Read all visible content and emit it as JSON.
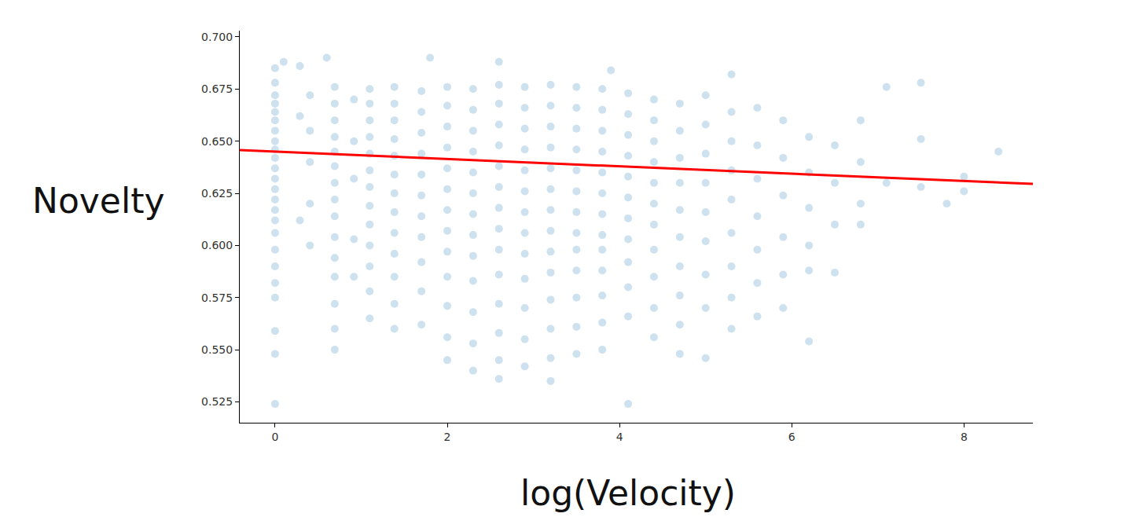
{
  "chart_data": {
    "type": "scatter",
    "xlabel": "log(Velocity)",
    "ylabel": "Novelty",
    "xlim": [
      -0.41,
      8.8
    ],
    "xticks": [
      0,
      2,
      4,
      6,
      8
    ],
    "ylim": [
      0.515,
      0.703
    ],
    "yticks": [
      {
        "value": 0.525,
        "label": "0.525"
      },
      {
        "value": 0.55,
        "label": "0.550"
      },
      {
        "value": 0.575,
        "label": "0.575"
      },
      {
        "value": 0.6,
        "label": "0.600"
      },
      {
        "value": 0.625,
        "label": "0.625"
      },
      {
        "value": 0.65,
        "label": "0.650"
      },
      {
        "value": 0.675,
        "label": "0.675"
      },
      {
        "value": 0.7,
        "label": "0.700"
      }
    ],
    "grid": false,
    "series": [
      {
        "type": "scatter",
        "marker": "circle",
        "color": "#1f77b4",
        "x": [
          0,
          0,
          0,
          0,
          0,
          0,
          0,
          0,
          0,
          0,
          0,
          0,
          0,
          0,
          0,
          0,
          0,
          0,
          0,
          0,
          0,
          0,
          0,
          0,
          0.693,
          0.693,
          0.693,
          0.693,
          0.693,
          0.693,
          0.693,
          0.693,
          0.693,
          0.693,
          0.693,
          0.693,
          0.693,
          0.693,
          0.693,
          1.099,
          1.099,
          1.099,
          1.099,
          1.099,
          1.099,
          1.099,
          1.099,
          1.099,
          1.099,
          1.099,
          1.099,
          1.099,
          1.386,
          1.386,
          1.386,
          1.386,
          1.386,
          1.386,
          1.386,
          1.386,
          1.386,
          1.386,
          1.386,
          1.386,
          1.386,
          0.405,
          0.405,
          0.405,
          0.405,
          0.405,
          0.288,
          0.288,
          0.288,
          0.916,
          0.916,
          0.916,
          0.916,
          0.916,
          1.7,
          1.7,
          1.7,
          1.7,
          1.7,
          1.7,
          1.7,
          1.7,
          1.7,
          1.7,
          1.7,
          2.0,
          2.0,
          2.0,
          2.0,
          2.0,
          2.0,
          2.0,
          2.0,
          2.0,
          2.0,
          2.0,
          2.0,
          2.0,
          2.3,
          2.3,
          2.3,
          2.3,
          2.3,
          2.3,
          2.3,
          2.3,
          2.3,
          2.3,
          2.3,
          2.3,
          2.3,
          2.6,
          2.6,
          2.6,
          2.6,
          2.6,
          2.6,
          2.6,
          2.6,
          2.6,
          2.6,
          2.6,
          2.6,
          2.6,
          2.6,
          2.9,
          2.9,
          2.9,
          2.9,
          2.9,
          2.9,
          2.9,
          2.9,
          2.9,
          2.9,
          2.9,
          2.9,
          2.9,
          3.2,
          3.2,
          3.2,
          3.2,
          3.2,
          3.2,
          3.2,
          3.2,
          3.2,
          3.2,
          3.2,
          3.2,
          3.2,
          3.2,
          3.5,
          3.5,
          3.5,
          3.5,
          3.5,
          3.5,
          3.5,
          3.5,
          3.5,
          3.5,
          3.5,
          3.5,
          3.5,
          3.8,
          3.8,
          3.8,
          3.8,
          3.8,
          3.8,
          3.8,
          3.8,
          3.8,
          3.8,
          3.8,
          3.8,
          3.8,
          4.1,
          4.1,
          4.1,
          4.1,
          4.1,
          4.1,
          4.1,
          4.1,
          4.1,
          4.1,
          4.1,
          4.1,
          4.4,
          4.4,
          4.4,
          4.4,
          4.4,
          4.4,
          4.4,
          4.4,
          4.4,
          4.4,
          4.4,
          4.7,
          4.7,
          4.7,
          4.7,
          4.7,
          4.7,
          4.7,
          4.7,
          4.7,
          4.7,
          5.0,
          5.0,
          5.0,
          5.0,
          5.0,
          5.0,
          5.0,
          5.0,
          5.0,
          5.3,
          5.3,
          5.3,
          5.3,
          5.3,
          5.3,
          5.3,
          5.3,
          5.6,
          5.6,
          5.6,
          5.6,
          5.6,
          5.6,
          5.6,
          5.9,
          5.9,
          5.9,
          5.9,
          5.9,
          5.9,
          6.2,
          6.2,
          6.2,
          6.2,
          6.2,
          6.2,
          6.5,
          6.5,
          6.5,
          6.5,
          6.8,
          6.8,
          6.8,
          6.8,
          7.1,
          7.1,
          7.5,
          7.5,
          7.5,
          7.8,
          8.0,
          8.0,
          8.4,
          0.1,
          0.6,
          1.8,
          2.6,
          3.9,
          5.3
        ],
        "values": [
          0.685,
          0.678,
          0.672,
          0.668,
          0.664,
          0.66,
          0.655,
          0.65,
          0.646,
          0.642,
          0.637,
          0.632,
          0.627,
          0.622,
          0.617,
          0.612,
          0.606,
          0.598,
          0.59,
          0.582,
          0.575,
          0.559,
          0.548,
          0.524,
          0.676,
          0.668,
          0.66,
          0.652,
          0.645,
          0.638,
          0.63,
          0.622,
          0.614,
          0.604,
          0.594,
          0.585,
          0.572,
          0.56,
          0.55,
          0.675,
          0.668,
          0.66,
          0.652,
          0.644,
          0.636,
          0.628,
          0.619,
          0.61,
          0.6,
          0.59,
          0.578,
          0.565,
          0.676,
          0.668,
          0.66,
          0.651,
          0.643,
          0.634,
          0.625,
          0.616,
          0.606,
          0.596,
          0.585,
          0.572,
          0.56,
          0.672,
          0.655,
          0.64,
          0.62,
          0.6,
          0.686,
          0.662,
          0.612,
          0.67,
          0.65,
          0.632,
          0.603,
          0.585,
          0.674,
          0.664,
          0.654,
          0.644,
          0.634,
          0.624,
          0.614,
          0.604,
          0.592,
          0.578,
          0.562,
          0.676,
          0.667,
          0.657,
          0.647,
          0.637,
          0.627,
          0.617,
          0.607,
          0.597,
          0.585,
          0.571,
          0.556,
          0.545,
          0.675,
          0.665,
          0.655,
          0.645,
          0.635,
          0.625,
          0.615,
          0.605,
          0.595,
          0.583,
          0.568,
          0.553,
          0.54,
          0.677,
          0.668,
          0.658,
          0.648,
          0.638,
          0.628,
          0.618,
          0.608,
          0.598,
          0.586,
          0.572,
          0.558,
          0.545,
          0.536,
          0.676,
          0.666,
          0.656,
          0.646,
          0.636,
          0.626,
          0.616,
          0.606,
          0.596,
          0.584,
          0.57,
          0.555,
          0.542,
          0.677,
          0.667,
          0.657,
          0.647,
          0.637,
          0.627,
          0.617,
          0.607,
          0.597,
          0.587,
          0.574,
          0.56,
          0.546,
          0.535,
          0.676,
          0.666,
          0.656,
          0.646,
          0.636,
          0.626,
          0.616,
          0.606,
          0.598,
          0.588,
          0.575,
          0.561,
          0.548,
          0.675,
          0.665,
          0.655,
          0.645,
          0.635,
          0.625,
          0.615,
          0.605,
          0.598,
          0.588,
          0.576,
          0.563,
          0.55,
          0.673,
          0.663,
          0.653,
          0.643,
          0.633,
          0.623,
          0.613,
          0.603,
          0.592,
          0.58,
          0.566,
          0.524,
          0.67,
          0.66,
          0.65,
          0.64,
          0.63,
          0.62,
          0.61,
          0.598,
          0.585,
          0.57,
          0.556,
          0.668,
          0.655,
          0.642,
          0.63,
          0.617,
          0.604,
          0.59,
          0.576,
          0.562,
          0.548,
          0.672,
          0.658,
          0.644,
          0.63,
          0.616,
          0.602,
          0.586,
          0.57,
          0.546,
          0.664,
          0.65,
          0.636,
          0.622,
          0.606,
          0.59,
          0.575,
          0.56,
          0.666,
          0.648,
          0.632,
          0.614,
          0.598,
          0.582,
          0.566,
          0.66,
          0.642,
          0.624,
          0.604,
          0.586,
          0.57,
          0.652,
          0.635,
          0.618,
          0.6,
          0.588,
          0.554,
          0.648,
          0.63,
          0.61,
          0.587,
          0.66,
          0.64,
          0.62,
          0.61,
          0.676,
          0.63,
          0.678,
          0.651,
          0.628,
          0.62,
          0.626,
          0.633,
          0.645,
          0.688,
          0.69,
          0.69,
          0.688,
          0.684,
          0.682
        ]
      },
      {
        "type": "line",
        "line_style": "solid",
        "color": "#ff0000",
        "x": [
          -0.41,
          8.8
        ],
        "values": [
          0.6457,
          0.6295
        ]
      }
    ]
  }
}
